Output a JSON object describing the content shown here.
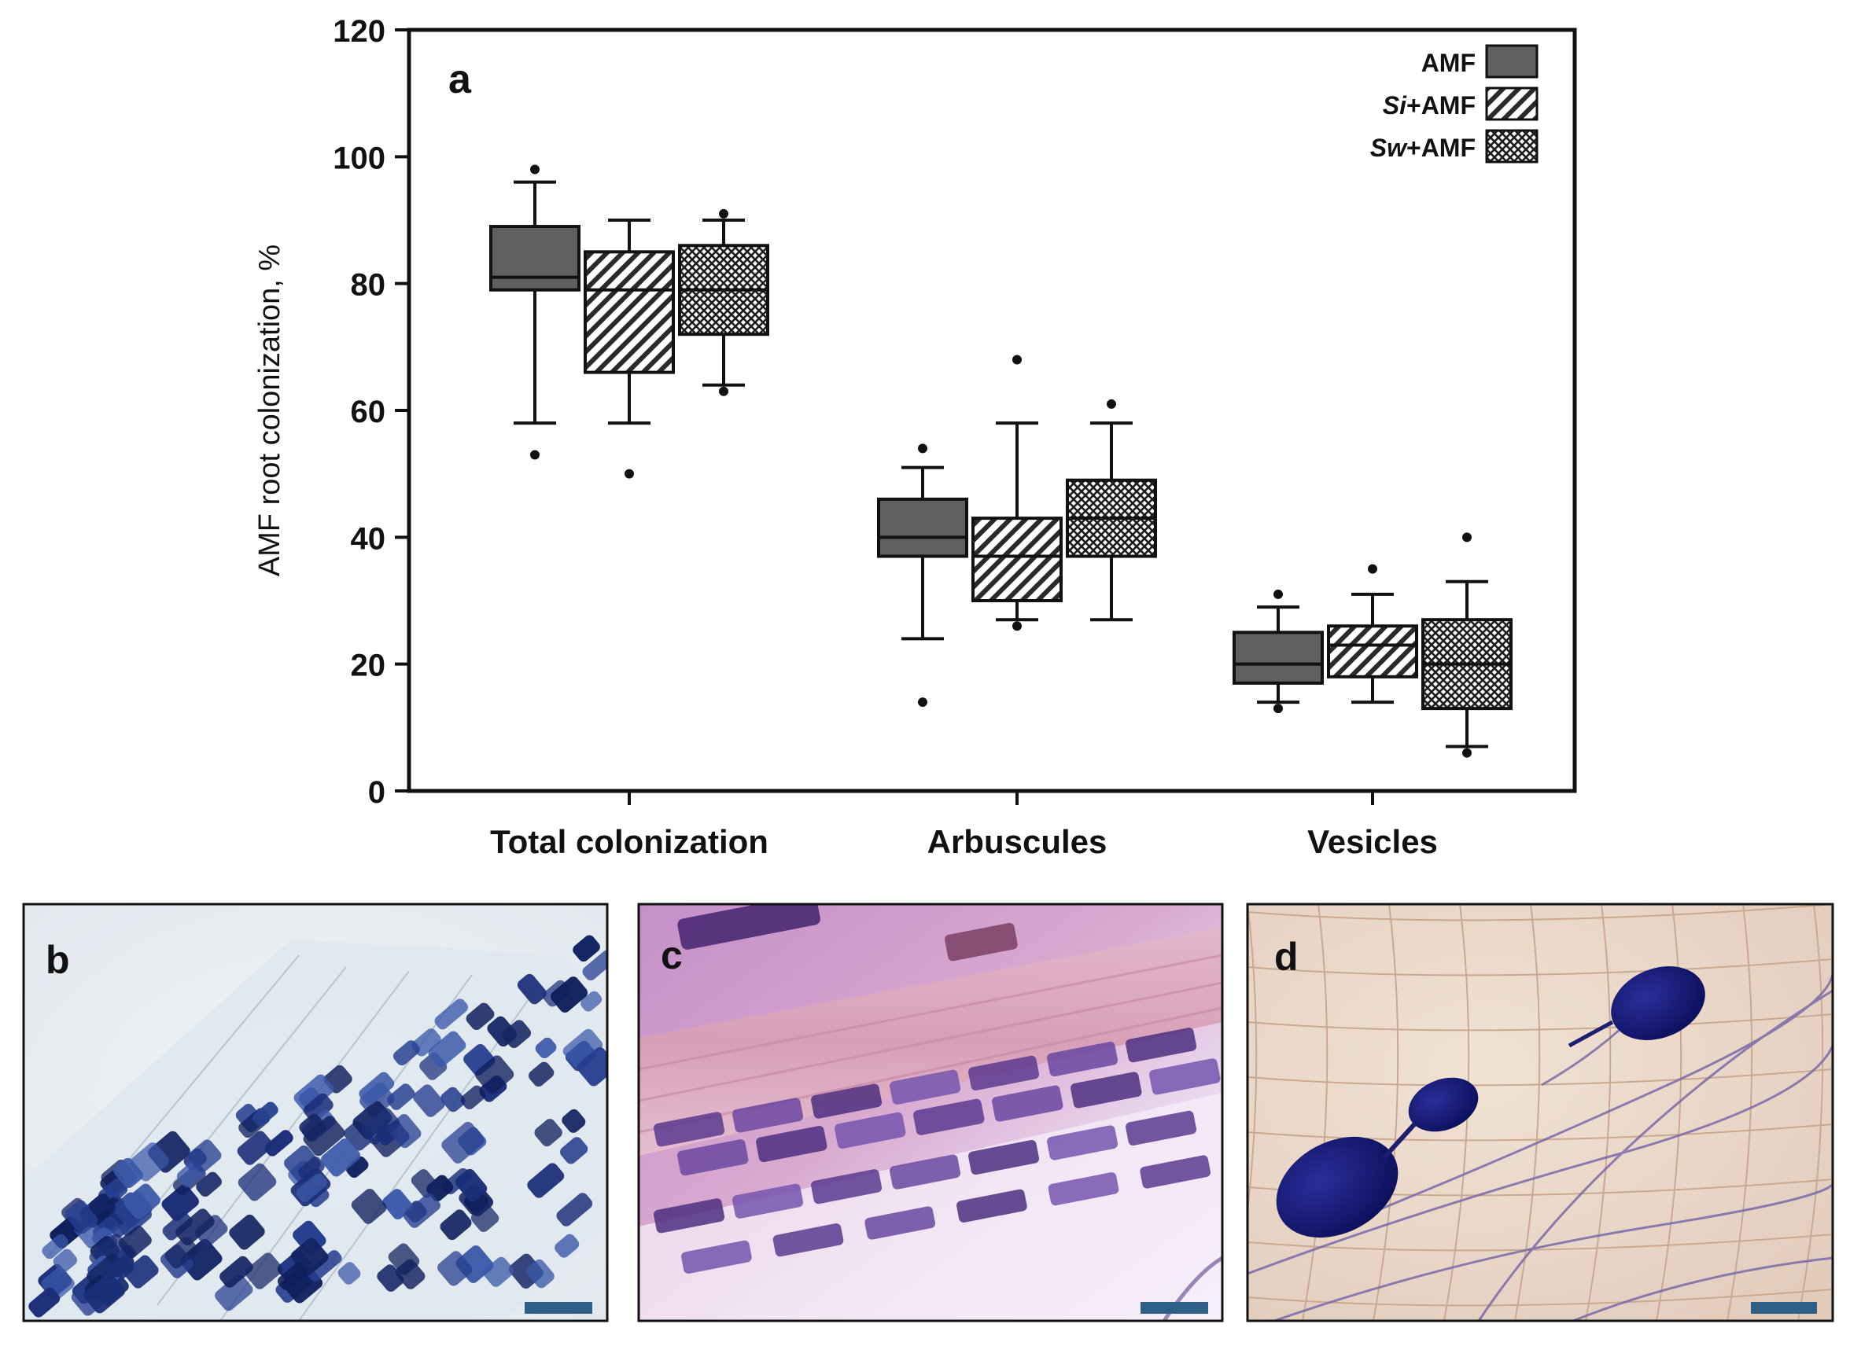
{
  "panels": {
    "a": {
      "label": "a"
    },
    "b": {
      "label": "b"
    },
    "c": {
      "label": "c"
    },
    "d": {
      "label": "d"
    }
  },
  "chart_data": {
    "type": "box",
    "title": "",
    "xlabel": "",
    "ylabel": "AMF root colonization, %",
    "ylim": [
      0,
      120
    ],
    "yticks": [
      0,
      20,
      40,
      60,
      80,
      100,
      120
    ],
    "grid": false,
    "legend_position": "top-right",
    "categories": [
      "Total colonization",
      "Arbuscules",
      "Vesicles"
    ],
    "series": [
      {
        "name": "AMF",
        "legend_italic": "",
        "legend_rest": "AMF",
        "pattern": "solid",
        "color": "#5f5f5f",
        "boxes": [
          {
            "whisker_low": 58,
            "q1": 79,
            "median": 81,
            "q3": 89,
            "whisker_high": 96,
            "outliers": [
              53,
              98
            ]
          },
          {
            "whisker_low": 24,
            "q1": 37,
            "median": 40,
            "q3": 46,
            "whisker_high": 51,
            "outliers": [
              14,
              54
            ]
          },
          {
            "whisker_low": 14,
            "q1": 17,
            "median": 20,
            "q3": 25,
            "whisker_high": 29,
            "outliers": [
              13,
              31
            ]
          }
        ]
      },
      {
        "name": "Si+AMF",
        "legend_italic": "Si",
        "legend_rest": "+AMF",
        "pattern": "diagonal",
        "color": "#ffffff",
        "boxes": [
          {
            "whisker_low": 58,
            "q1": 66,
            "median": 79,
            "q3": 85,
            "whisker_high": 90,
            "outliers": [
              50
            ]
          },
          {
            "whisker_low": 27,
            "q1": 30,
            "median": 37,
            "q3": 43,
            "whisker_high": 58,
            "outliers": [
              26,
              68
            ]
          },
          {
            "whisker_low": 14,
            "q1": 18,
            "median": 23,
            "q3": 26,
            "whisker_high": 31,
            "outliers": [
              35
            ]
          }
        ]
      },
      {
        "name": "Sw+AMF",
        "legend_italic": "Sw",
        "legend_rest": "+AMF",
        "pattern": "crosshatch",
        "color": "#ffffff",
        "boxes": [
          {
            "whisker_low": 64,
            "q1": 72,
            "median": 79,
            "q3": 86,
            "whisker_high": 90,
            "outliers": [
              63,
              91
            ]
          },
          {
            "whisker_low": 27,
            "q1": 37,
            "median": 43,
            "q3": 49,
            "whisker_high": 58,
            "outliers": [
              61
            ]
          },
          {
            "whisker_low": 7,
            "q1": 13,
            "median": 20,
            "q3": 27,
            "whisker_high": 33,
            "outliers": [
              6,
              40
            ]
          }
        ]
      }
    ]
  }
}
